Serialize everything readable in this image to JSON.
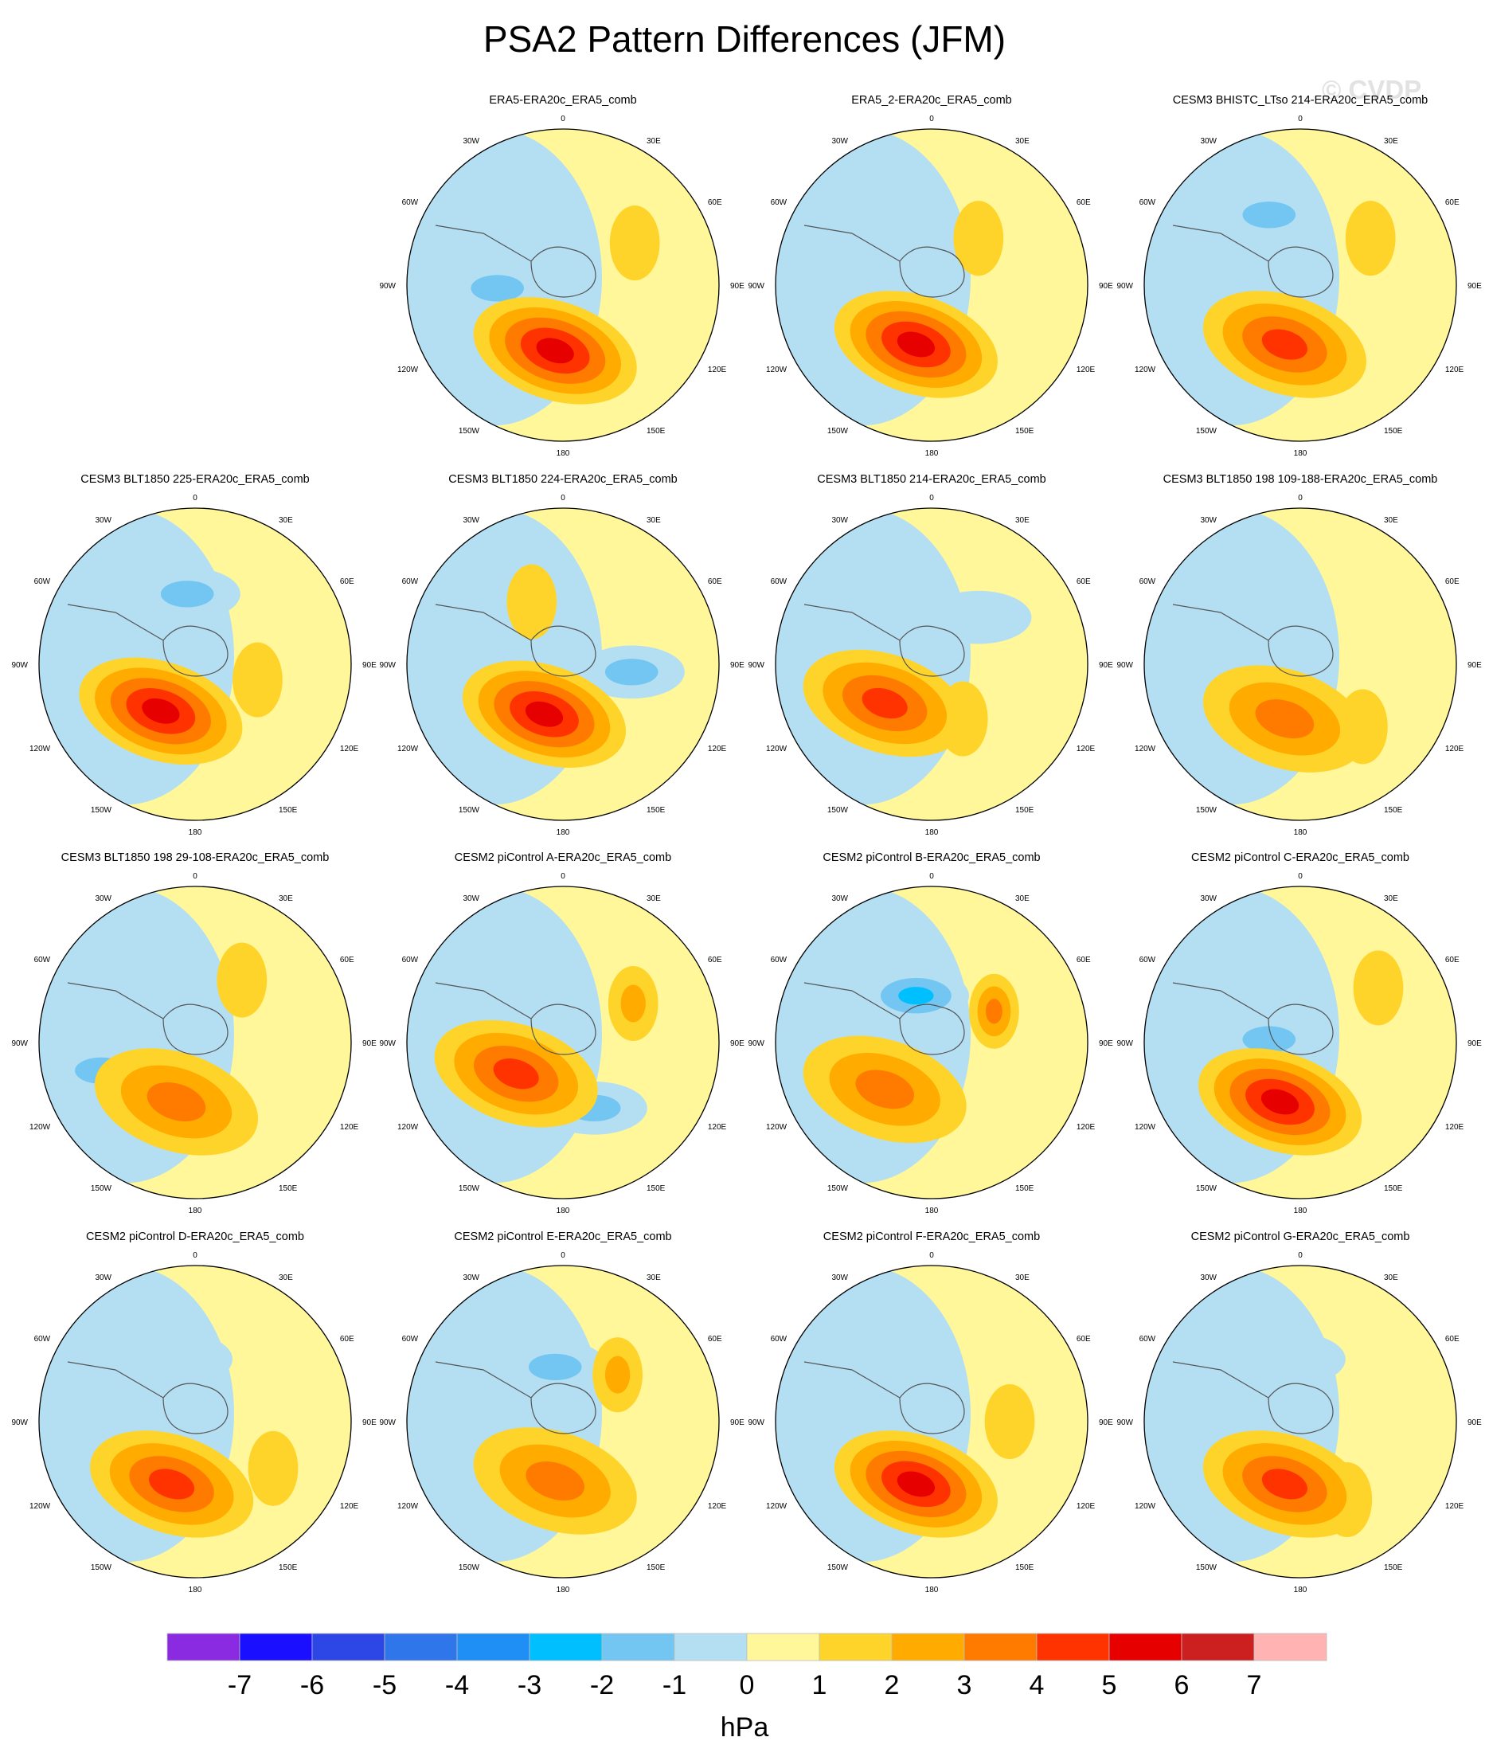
{
  "title": "PSA2 Pattern Differences (JFM)",
  "watermark": "© CVDP",
  "lon_labels": [
    "0",
    "30E",
    "60E",
    "90E",
    "120E",
    "150E",
    "180",
    "150W",
    "120W",
    "90W",
    "60W",
    "30W"
  ],
  "colorbar": {
    "ticks": [
      "-7",
      "-6",
      "-5",
      "-4",
      "-3",
      "-2",
      "-1",
      "0",
      "1",
      "2",
      "3",
      "4",
      "5",
      "6",
      "7"
    ],
    "colors": [
      "#8a2be2",
      "#1a0fff",
      "#2d46e6",
      "#2f76ea",
      "#1f8ff5",
      "#00bfff",
      "#73c6f1",
      "#b4dff3",
      "#fff799",
      "#ffd42a",
      "#ffab00",
      "#ff7b00",
      "#ff3300",
      "#e60000",
      "#cc1f1f",
      "#ffb3b3"
    ],
    "units": "hPa"
  },
  "panels": [
    {
      "title": "ERA5-ERA20c_ERA5_comb",
      "peak": 5,
      "cx": -0.05,
      "cy": 0.42,
      "trough": -2,
      "tx": -0.42,
      "ty": 0.02,
      "ridge": 1,
      "rx": 0.46,
      "ry": -0.27
    },
    {
      "title": "ERA5_2-ERA20c_ERA5_comb",
      "peak": 5,
      "cx": -0.1,
      "cy": 0.38,
      "trough": -1,
      "tx": -0.2,
      "ty": 0.1,
      "ridge": 1,
      "rx": 0.3,
      "ry": -0.3
    },
    {
      "title": "CESM3 BHISTC_LTso 214-ERA20c_ERA5_comb",
      "peak": 4,
      "cx": -0.1,
      "cy": 0.38,
      "trough": -2,
      "tx": -0.2,
      "ty": -0.45,
      "ridge": 1,
      "rx": 0.45,
      "ry": -0.3
    },
    {
      "title": "CESM3 BLT1850 225-ERA20c_ERA5_comb",
      "peak": 5,
      "cx": -0.22,
      "cy": 0.3,
      "trough": -2,
      "tx": -0.05,
      "ty": -0.45,
      "ridge": 1,
      "rx": 0.4,
      "ry": 0.1
    },
    {
      "title": "CESM3 BLT1850 224-ERA20c_ERA5_comb",
      "peak": 5,
      "cx": -0.12,
      "cy": 0.32,
      "trough": -2,
      "tx": 0.44,
      "ty": 0.05,
      "ridge": 1,
      "rx": -0.2,
      "ry": -0.4
    },
    {
      "title": "CESM3 BLT1850 214-ERA20c_ERA5_comb",
      "peak": 4,
      "cx": -0.3,
      "cy": 0.25,
      "trough": -1,
      "tx": 0.3,
      "ty": -0.3,
      "ridge": 1,
      "rx": 0.2,
      "ry": 0.35
    },
    {
      "title": "CESM3 BLT1850 198 109-188-ERA20c_ERA5_comb",
      "peak": 3,
      "cx": -0.1,
      "cy": 0.35,
      "trough": -1,
      "tx": -0.3,
      "ty": -0.3,
      "ridge": 1,
      "rx": 0.4,
      "ry": 0.4
    },
    {
      "title": "CESM3 BLT1850 198 29-108-ERA20c_ERA5_comb",
      "peak": 3,
      "cx": -0.12,
      "cy": 0.38,
      "trough": -2,
      "tx": -0.6,
      "ty": 0.18,
      "ridge": 1,
      "rx": 0.3,
      "ry": -0.4
    },
    {
      "title": "CESM2 piControl A-ERA20c_ERA5_comb",
      "peak": 4,
      "cx": -0.3,
      "cy": 0.2,
      "trough": -2,
      "tx": 0.2,
      "ty": 0.42,
      "ridge": 2,
      "rx": 0.45,
      "ry": -0.25
    },
    {
      "title": "CESM2 piControl B-ERA20c_ERA5_comb",
      "peak": 3,
      "cx": -0.3,
      "cy": 0.3,
      "trough": -3,
      "tx": -0.1,
      "ty": -0.3,
      "ridge": 3,
      "rx": 0.4,
      "ry": -0.2
    },
    {
      "title": "CESM2 piControl C-ERA20c_ERA5_comb",
      "peak": 5,
      "cx": -0.13,
      "cy": 0.38,
      "trough": -2,
      "tx": -0.2,
      "ty": -0.02,
      "ridge": 1,
      "rx": 0.5,
      "ry": -0.35
    },
    {
      "title": "CESM2 piControl D-ERA20c_ERA5_comb",
      "peak": 4,
      "cx": -0.15,
      "cy": 0.4,
      "trough": -1,
      "tx": -0.1,
      "ty": -0.4,
      "ridge": 1,
      "rx": 0.5,
      "ry": 0.3
    },
    {
      "title": "CESM2 piControl E-ERA20c_ERA5_comb",
      "peak": 3,
      "cx": -0.05,
      "cy": 0.38,
      "trough": -2,
      "tx": -0.05,
      "ty": -0.35,
      "ridge": 2,
      "rx": 0.35,
      "ry": -0.3
    },
    {
      "title": "CESM2 piControl F-ERA20c_ERA5_comb",
      "peak": 5,
      "cx": -0.1,
      "cy": 0.4,
      "trough": -1,
      "tx": -0.2,
      "ty": -0.2,
      "ridge": 1,
      "rx": 0.5,
      "ry": 0.0
    },
    {
      "title": "CESM2 piControl G-ERA20c_ERA5_comb",
      "peak": 4,
      "cx": -0.1,
      "cy": 0.4,
      "trough": -1,
      "tx": -0.05,
      "ty": -0.4,
      "ridge": 1,
      "rx": 0.3,
      "ry": 0.5
    }
  ]
}
